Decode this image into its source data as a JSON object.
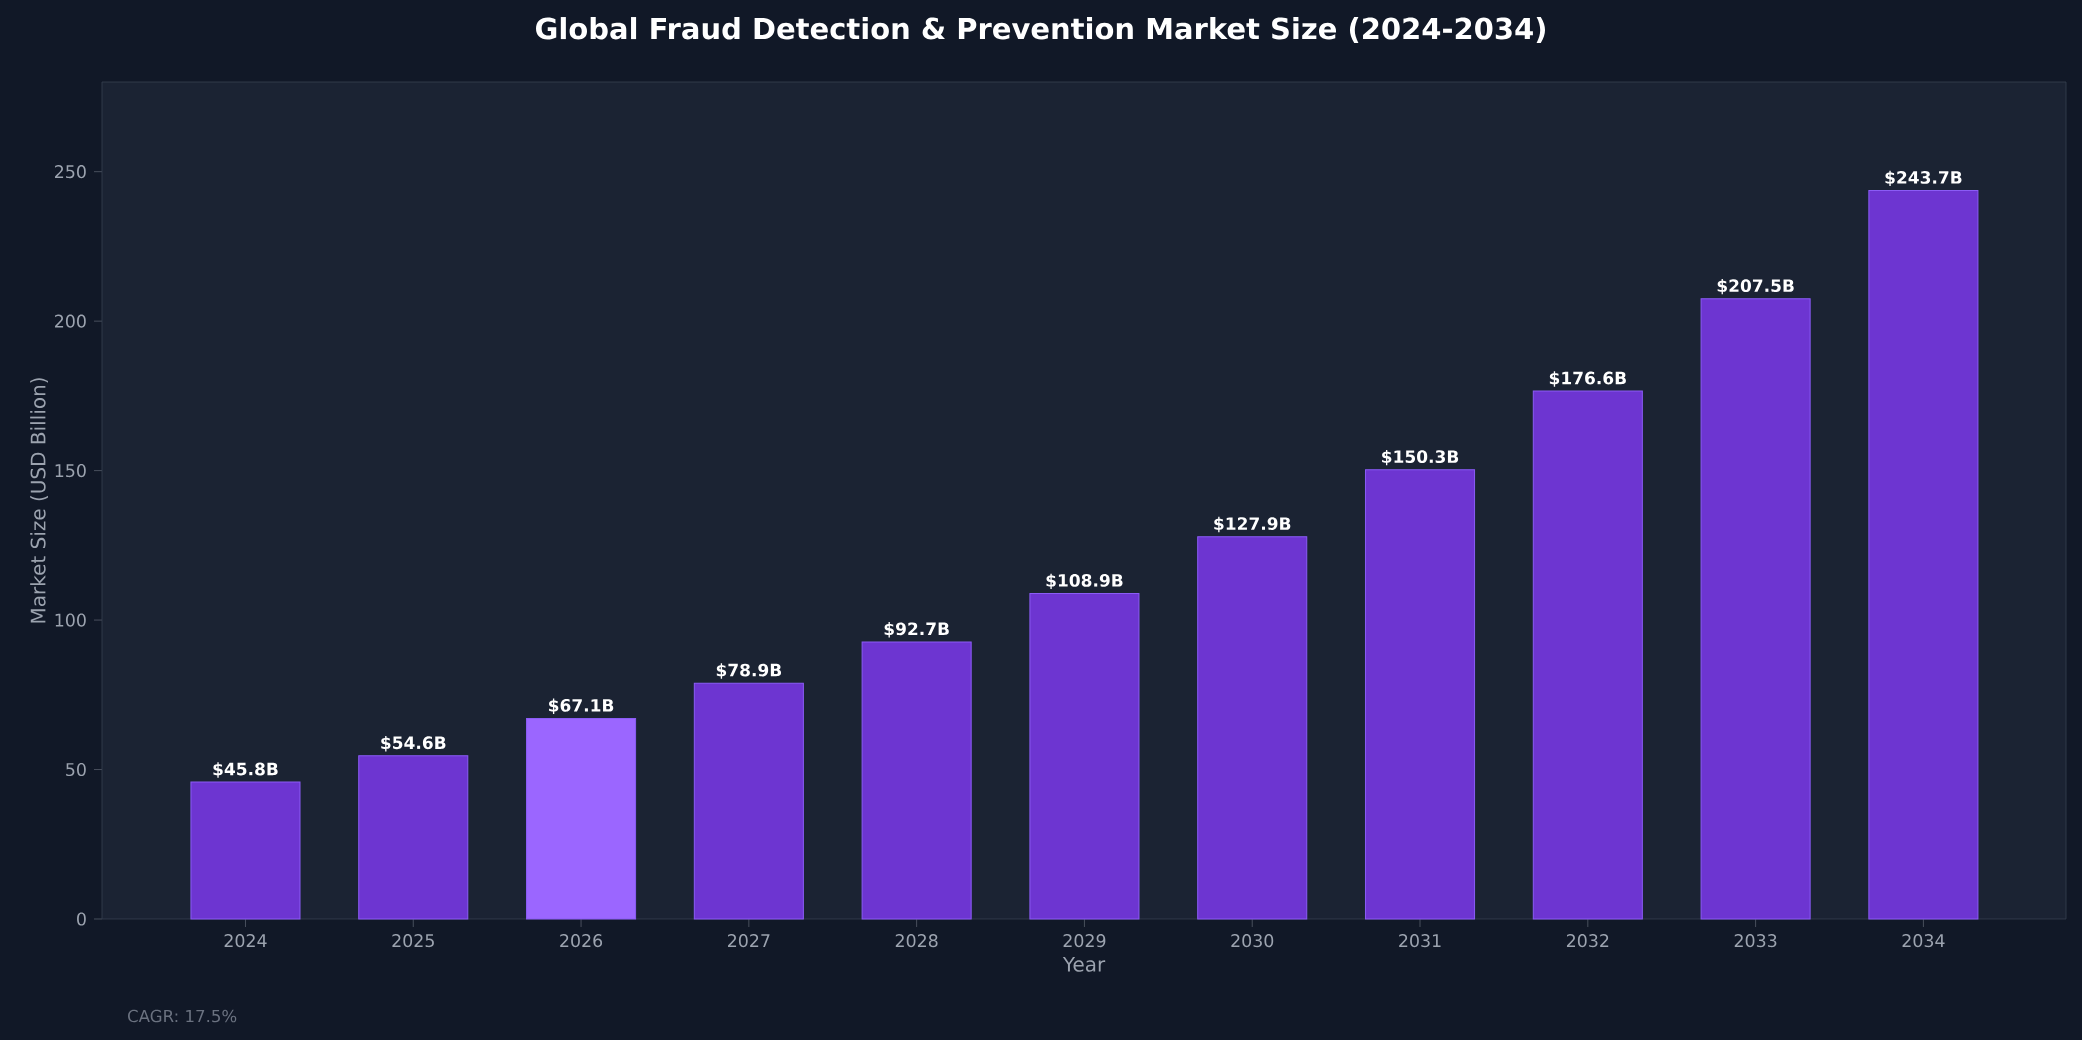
{
  "chart_data": {
    "type": "bar",
    "title": "Global Fraud Detection & Prevention Market Size (2024-2034)",
    "xlabel": "Year",
    "ylabel": "Market Size (USD Billion)",
    "categories": [
      "2024",
      "2025",
      "2026",
      "2027",
      "2028",
      "2029",
      "2030",
      "2031",
      "2032",
      "2033",
      "2034"
    ],
    "values": [
      45.8,
      54.6,
      67.1,
      78.9,
      92.7,
      108.9,
      127.9,
      150.3,
      176.6,
      207.5,
      243.7
    ],
    "value_labels": [
      "$45.8B",
      "$54.6B",
      "$67.1B",
      "$78.9B",
      "$92.7B",
      "$108.9B",
      "$127.9B",
      "$150.3B",
      "$176.6B",
      "$207.5B",
      "$243.7B"
    ],
    "colors": [
      "#6d35d1",
      "#6d35d1",
      "#9b66ff",
      "#6d35d1",
      "#6d35d1",
      "#6d35d1",
      "#6d35d1",
      "#6d35d1",
      "#6d35d1",
      "#6d35d1",
      "#6d35d1"
    ],
    "ylim": [
      0,
      280
    ],
    "yticks": [
      0,
      50,
      100,
      150,
      200,
      250
    ],
    "annotations": [
      "CAGR: 17.5%"
    ]
  }
}
